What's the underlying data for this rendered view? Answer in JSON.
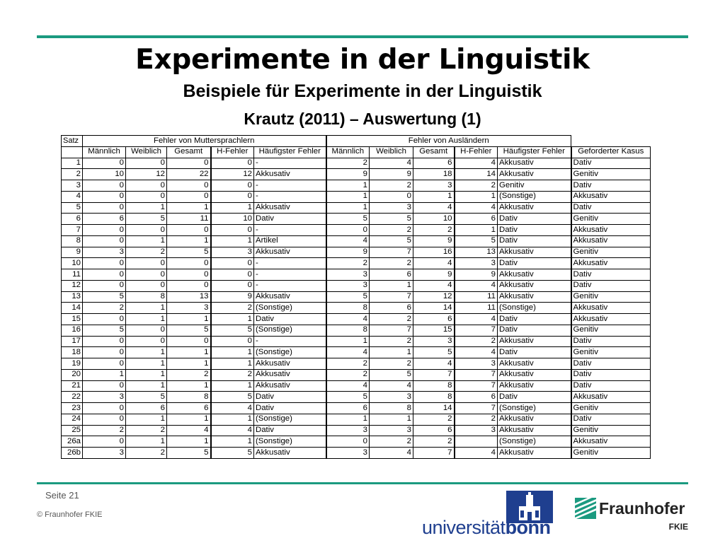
{
  "slide": {
    "title": "Experimente in der Linguistik",
    "subtitle": "Beispiele für Experimente in der Linguistik",
    "table_title": "Krautz (2011) – Auswertung (1)",
    "page_label": "Seite 21",
    "copyright": "© Fraunhofer FKIE"
  },
  "table": {
    "satz_label": "Satz",
    "group_native": "Fehler von Muttersprachlern",
    "group_foreign": "Fehler von Ausländern",
    "headers_native": [
      "Männlich",
      "Weiblich",
      "Gesamt",
      "H-Fehler",
      "Häufigster Fehler"
    ],
    "headers_foreign": [
      "Männlich",
      "Weiblich",
      "Gesamt",
      "H-Fehler",
      "Häufigster Fehler"
    ],
    "header_kasus": "Geforderter Kasus",
    "rows": [
      [
        "1",
        "0",
        "0",
        "0",
        "0",
        "-",
        "2",
        "4",
        "6",
        "4",
        "Akkusativ",
        "Dativ"
      ],
      [
        "2",
        "10",
        "12",
        "22",
        "12",
        "Akkusativ",
        "9",
        "9",
        "18",
        "14",
        "Akkusativ",
        "Genitiv"
      ],
      [
        "3",
        "0",
        "0",
        "0",
        "0",
        "-",
        "1",
        "2",
        "3",
        "2",
        "Genitiv",
        "Dativ"
      ],
      [
        "4",
        "0",
        "0",
        "0",
        "0",
        "-",
        "1",
        "0",
        "1",
        "1",
        "(Sonstige)",
        "Akkusativ"
      ],
      [
        "5",
        "0",
        "1",
        "1",
        "1",
        "Akkusativ",
        "1",
        "3",
        "4",
        "4",
        "Akkusativ",
        "Dativ"
      ],
      [
        "6",
        "6",
        "5",
        "11",
        "10",
        "Dativ",
        "5",
        "5",
        "10",
        "6",
        "Dativ",
        "Genitiv"
      ],
      [
        "7",
        "0",
        "0",
        "0",
        "0",
        "-",
        "0",
        "2",
        "2",
        "1",
        "Dativ",
        "Akkusativ"
      ],
      [
        "8",
        "0",
        "1",
        "1",
        "1",
        "Artikel",
        "4",
        "5",
        "9",
        "5",
        "Dativ",
        "Akkusativ"
      ],
      [
        "9",
        "3",
        "2",
        "5",
        "3",
        "Akkusativ",
        "9",
        "7",
        "16",
        "13",
        "Akkusativ",
        "Genitiv"
      ],
      [
        "10",
        "0",
        "0",
        "0",
        "0",
        "-",
        "2",
        "2",
        "4",
        "3",
        "Dativ",
        "Akkusativ"
      ],
      [
        "11",
        "0",
        "0",
        "0",
        "0",
        "-",
        "3",
        "6",
        "9",
        "9",
        "Akkusativ",
        "Dativ"
      ],
      [
        "12",
        "0",
        "0",
        "0",
        "0",
        "-",
        "3",
        "1",
        "4",
        "4",
        "Akkusativ",
        "Dativ"
      ],
      [
        "13",
        "5",
        "8",
        "13",
        "9",
        "Akkusativ",
        "5",
        "7",
        "12",
        "11",
        "Akkusativ",
        "Genitiv"
      ],
      [
        "14",
        "2",
        "1",
        "3",
        "2",
        "(Sonstige)",
        "8",
        "6",
        "14",
        "11",
        "(Sonstige)",
        "Akkusativ"
      ],
      [
        "15",
        "0",
        "1",
        "1",
        "1",
        "Dativ",
        "4",
        "2",
        "6",
        "4",
        "Dativ",
        "Akkusativ"
      ],
      [
        "16",
        "5",
        "0",
        "5",
        "5",
        "(Sonstige)",
        "8",
        "7",
        "15",
        "7",
        "Dativ",
        "Genitiv"
      ],
      [
        "17",
        "0",
        "0",
        "0",
        "0",
        "-",
        "1",
        "2",
        "3",
        "2",
        "Akkusativ",
        "Dativ"
      ],
      [
        "18",
        "0",
        "1",
        "1",
        "1",
        "(Sonstige)",
        "4",
        "1",
        "5",
        "4",
        "Dativ",
        "Genitiv"
      ],
      [
        "19",
        "0",
        "1",
        "1",
        "1",
        "Akkusativ",
        "2",
        "2",
        "4",
        "3",
        "Akkusativ",
        "Dativ"
      ],
      [
        "20",
        "1",
        "1",
        "2",
        "2",
        "Akkusativ",
        "2",
        "5",
        "7",
        "7",
        "Akkusativ",
        "Dativ"
      ],
      [
        "21",
        "0",
        "1",
        "1",
        "1",
        "Akkusativ",
        "4",
        "4",
        "8",
        "7",
        "Akkusativ",
        "Dativ"
      ],
      [
        "22",
        "3",
        "5",
        "8",
        "5",
        "Dativ",
        "5",
        "3",
        "8",
        "6",
        "Dativ",
        "Akkusativ"
      ],
      [
        "23",
        "0",
        "6",
        "6",
        "4",
        "Dativ",
        "6",
        "8",
        "14",
        "7",
        "(Sonstige)",
        "Genitiv"
      ],
      [
        "24",
        "0",
        "1",
        "1",
        "1",
        "(Sonstige)",
        "1",
        "1",
        "2",
        "2",
        "Akkusativ",
        "Dativ"
      ],
      [
        "25",
        "2",
        "2",
        "4",
        "4",
        "Dativ",
        "3",
        "3",
        "6",
        "3",
        "Akkusativ",
        "Genitiv"
      ],
      [
        "26a",
        "0",
        "1",
        "1",
        "1",
        "(Sonstige)",
        "0",
        "2",
        "2",
        "",
        "(Sonstige)",
        "Akkusativ"
      ],
      [
        "26b",
        "3",
        "2",
        "5",
        "5",
        "Akkusativ",
        "3",
        "4",
        "7",
        "4",
        "Akkusativ",
        "Genitiv"
      ]
    ]
  },
  "logos": {
    "bonn_prefix": "universität",
    "bonn_suffix": "bonn",
    "fraunhofer_name": "Fraunhofer",
    "fraunhofer_sub": "FKIE",
    "bonn_color": "#1f3f8f",
    "fraunhofer_color": "#1b9a80"
  }
}
